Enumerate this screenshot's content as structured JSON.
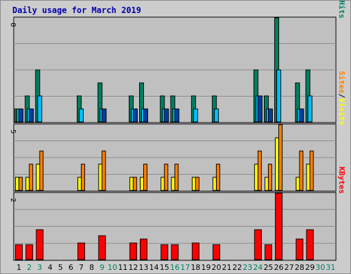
{
  "title": "Daily usage for March 2019",
  "colors": {
    "hits": "#008060",
    "files": "#00c0ff",
    "pages": "#0040a0",
    "visits": "#ffff00",
    "sites": "#ff8000",
    "kbytes": "#ff0000",
    "weekday_label": "#000000",
    "weekend_label": "#008060"
  },
  "legends": {
    "top": [
      {
        "label": "Pages",
        "color": "#00c0ff"
      },
      {
        "label": "/",
        "color": "#000000"
      },
      {
        "label": "Files",
        "color": "#0040c0"
      },
      {
        "label": "/",
        "color": "#000000"
      },
      {
        "label": "Hits",
        "color": "#008060"
      }
    ],
    "mid": [
      {
        "label": "Sites",
        "color": "#ff8000"
      },
      {
        "label": "/",
        "color": "#000000"
      },
      {
        "label": "Visits",
        "color": "#ffff00"
      }
    ],
    "bottom": [
      {
        "label": "KBytes",
        "color": "#ff0000"
      }
    ]
  },
  "chart_data": {
    "type": "bar",
    "title": "Daily usage for March 2019",
    "categories": [
      "1",
      "2",
      "3",
      "4",
      "5",
      "6",
      "7",
      "8",
      "9",
      "10",
      "11",
      "12",
      "13",
      "14",
      "15",
      "16",
      "17",
      "18",
      "19",
      "20",
      "21",
      "22",
      "23",
      "24",
      "25",
      "26",
      "27",
      "28",
      "29",
      "30",
      "31"
    ],
    "weekend_days": [
      "2",
      "3",
      "9",
      "10",
      "16",
      "17",
      "23",
      "24",
      "30",
      "31"
    ],
    "panels": [
      {
        "name": "hits-files-pages",
        "scale_label": "8",
        "ylim": [
          0,
          8
        ],
        "series": [
          {
            "name": "Hits",
            "values": [
              1,
              2,
              4,
              0,
              0,
              0,
              2,
              0,
              3,
              0,
              0,
              2,
              3,
              0,
              2,
              2,
              0,
              2,
              0,
              2,
              0,
              0,
              0,
              4,
              2,
              8,
              0,
              3,
              4,
              0,
              0
            ]
          },
          {
            "name": "Files",
            "values": [
              1,
              1,
              2,
              0,
              0,
              0,
              1,
              0,
              1,
              0,
              0,
              1,
              1,
              0,
              1,
              1,
              0,
              1,
              0,
              1,
              0,
              0,
              0,
              2,
              1,
              4,
              0,
              1,
              2,
              0,
              0
            ]
          },
          {
            "name": "Pages",
            "values": [
              1,
              1,
              0,
              0,
              0,
              0,
              0,
              0,
              1,
              0,
              0,
              1,
              1,
              0,
              1,
              1,
              0,
              0,
              0,
              0,
              0,
              0,
              0,
              2,
              1,
              0,
              0,
              1,
              0,
              0,
              0
            ]
          }
        ]
      },
      {
        "name": "visits-sites",
        "scale_label": "5",
        "ylim": [
          0,
          5
        ],
        "series": [
          {
            "name": "Visits",
            "values": [
              1,
              1,
              2,
              0,
              0,
              0,
              1,
              0,
              2,
              0,
              0,
              1,
              1,
              0,
              1,
              1,
              0,
              1,
              0,
              1,
              0,
              0,
              0,
              2,
              1,
              4,
              0,
              1,
              2,
              0,
              0
            ]
          },
          {
            "name": "Sites",
            "values": [
              1,
              2,
              3,
              0,
              0,
              0,
              2,
              0,
              3,
              0,
              0,
              1,
              2,
              0,
              2,
              2,
              0,
              1,
              0,
              2,
              0,
              0,
              0,
              3,
              2,
              5,
              0,
              3,
              3,
              0,
              0
            ]
          }
        ]
      },
      {
        "name": "kbytes",
        "scale_label": "2",
        "ylim": [
          0,
          2
        ],
        "series": [
          {
            "name": "KBytes",
            "values": [
              0.45,
              0.45,
              0.9,
              0,
              0,
              0,
              0.5,
              0,
              0.72,
              0,
              0,
              0.5,
              0.62,
              0,
              0.45,
              0.45,
              0,
              0.5,
              0,
              0.45,
              0,
              0,
              0,
              0.9,
              0.45,
              2,
              0,
              0.62,
              0.9,
              0,
              0
            ]
          }
        ]
      }
    ]
  }
}
